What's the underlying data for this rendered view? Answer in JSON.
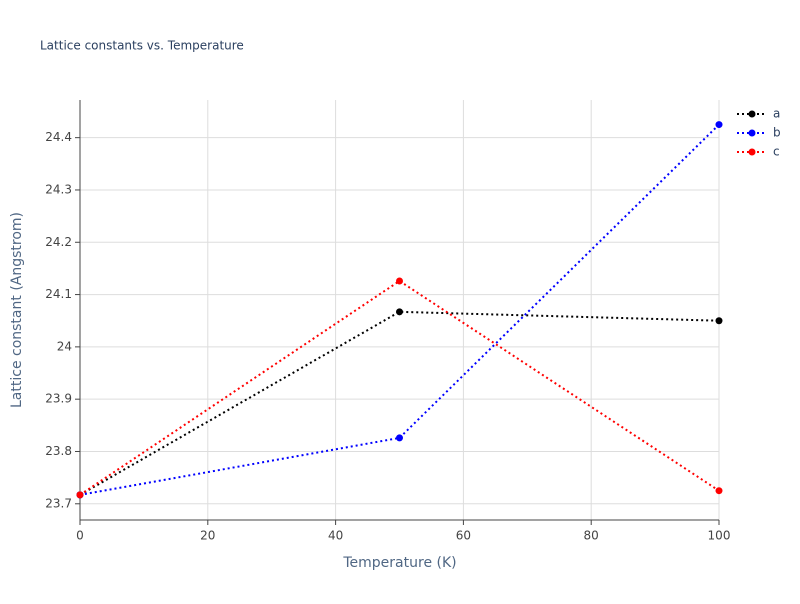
{
  "chart_data": {
    "type": "line",
    "title": "Lattice constants vs. Temperature",
    "x_label": "Temperature (K)",
    "y_label": "Lattice constant (Angstrom)",
    "x": [
      0,
      50,
      100
    ],
    "series": [
      {
        "name": "a",
        "color": "#000000",
        "values": [
          23.717,
          24.067,
          24.05
        ]
      },
      {
        "name": "b",
        "color": "#0000ff",
        "values": [
          23.717,
          23.826,
          24.425
        ]
      },
      {
        "name": "c",
        "color": "#ff0000",
        "values": [
          23.717,
          24.126,
          23.725
        ]
      }
    ],
    "xlim": [
      0,
      100
    ],
    "xticks": [
      0,
      20,
      40,
      60,
      80,
      100
    ],
    "ylim": [
      23.669,
      24.472
    ],
    "yticks": [
      23.7,
      23.8,
      23.9,
      24,
      24.1,
      24.2,
      24.3,
      24.4
    ],
    "grid": true,
    "line_style": "dotted",
    "legend": "right"
  }
}
